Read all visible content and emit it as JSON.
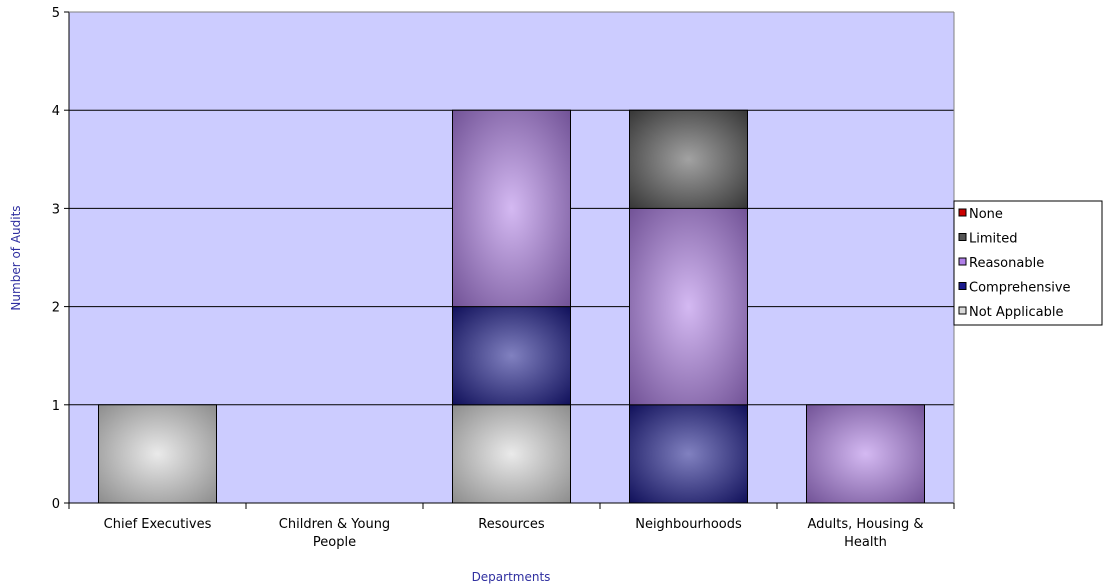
{
  "chart_data": {
    "type": "bar",
    "stacked": true,
    "categories": [
      [
        "Chief Executives"
      ],
      [
        "Children & Young",
        "People"
      ],
      [
        "Resources"
      ],
      [
        "Neighbourhoods"
      ],
      [
        "Adults, Housing &",
        "Health"
      ]
    ],
    "series": [
      {
        "name": "Not Applicable",
        "values": [
          1,
          0,
          1,
          0,
          0
        ],
        "color": "#d9d9d9"
      },
      {
        "name": "Comprehensive",
        "values": [
          0,
          0,
          1,
          1,
          0
        ],
        "color": "#1a1a8c"
      },
      {
        "name": "Reasonable",
        "values": [
          0,
          0,
          2,
          2,
          1
        ],
        "color": "#b07fe8"
      },
      {
        "name": "Limited",
        "values": [
          0,
          0,
          0,
          1,
          0
        ],
        "color": "#555555"
      },
      {
        "name": "None",
        "values": [
          0,
          0,
          0,
          0,
          0
        ],
        "color": "#cc0000"
      }
    ],
    "legend_order": [
      "None",
      "Limited",
      "Reasonable",
      "Comprehensive",
      "Not Applicable"
    ],
    "xlabel": "Departments",
    "ylabel": "Number of Audits",
    "ylim": [
      0,
      5
    ],
    "yticks": [
      "0",
      "1",
      "2",
      "3",
      "4",
      "5"
    ],
    "grid": true,
    "legend_position": "right",
    "plot_background": "#ccccff"
  }
}
